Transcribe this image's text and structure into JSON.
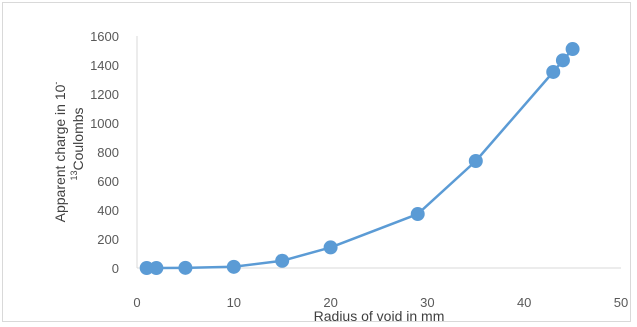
{
  "chart_data": {
    "type": "scatter",
    "title": "",
    "xlabel": "Radius of void in mm",
    "ylabel_line1": "Apparent charge in 10",
    "ylabel_sup_top": "-",
    "ylabel_sup": "13",
    "ylabel_line2": "Coulombs",
    "xlim": [
      0,
      50
    ],
    "ylim": [
      0,
      1600
    ],
    "xticks": [
      0,
      10,
      20,
      30,
      40,
      50
    ],
    "yticks": [
      0,
      200,
      400,
      600,
      800,
      1000,
      1200,
      1400,
      1600
    ],
    "grid": false,
    "legend": "none",
    "series": [
      {
        "color": "#5b9bd5",
        "x": [
          1,
          2,
          5,
          10,
          15,
          20,
          29,
          35,
          43,
          44,
          45
        ],
        "y": [
          0,
          0,
          1,
          8,
          50,
          142,
          372,
          738,
          1352,
          1432,
          1510
        ]
      }
    ]
  }
}
